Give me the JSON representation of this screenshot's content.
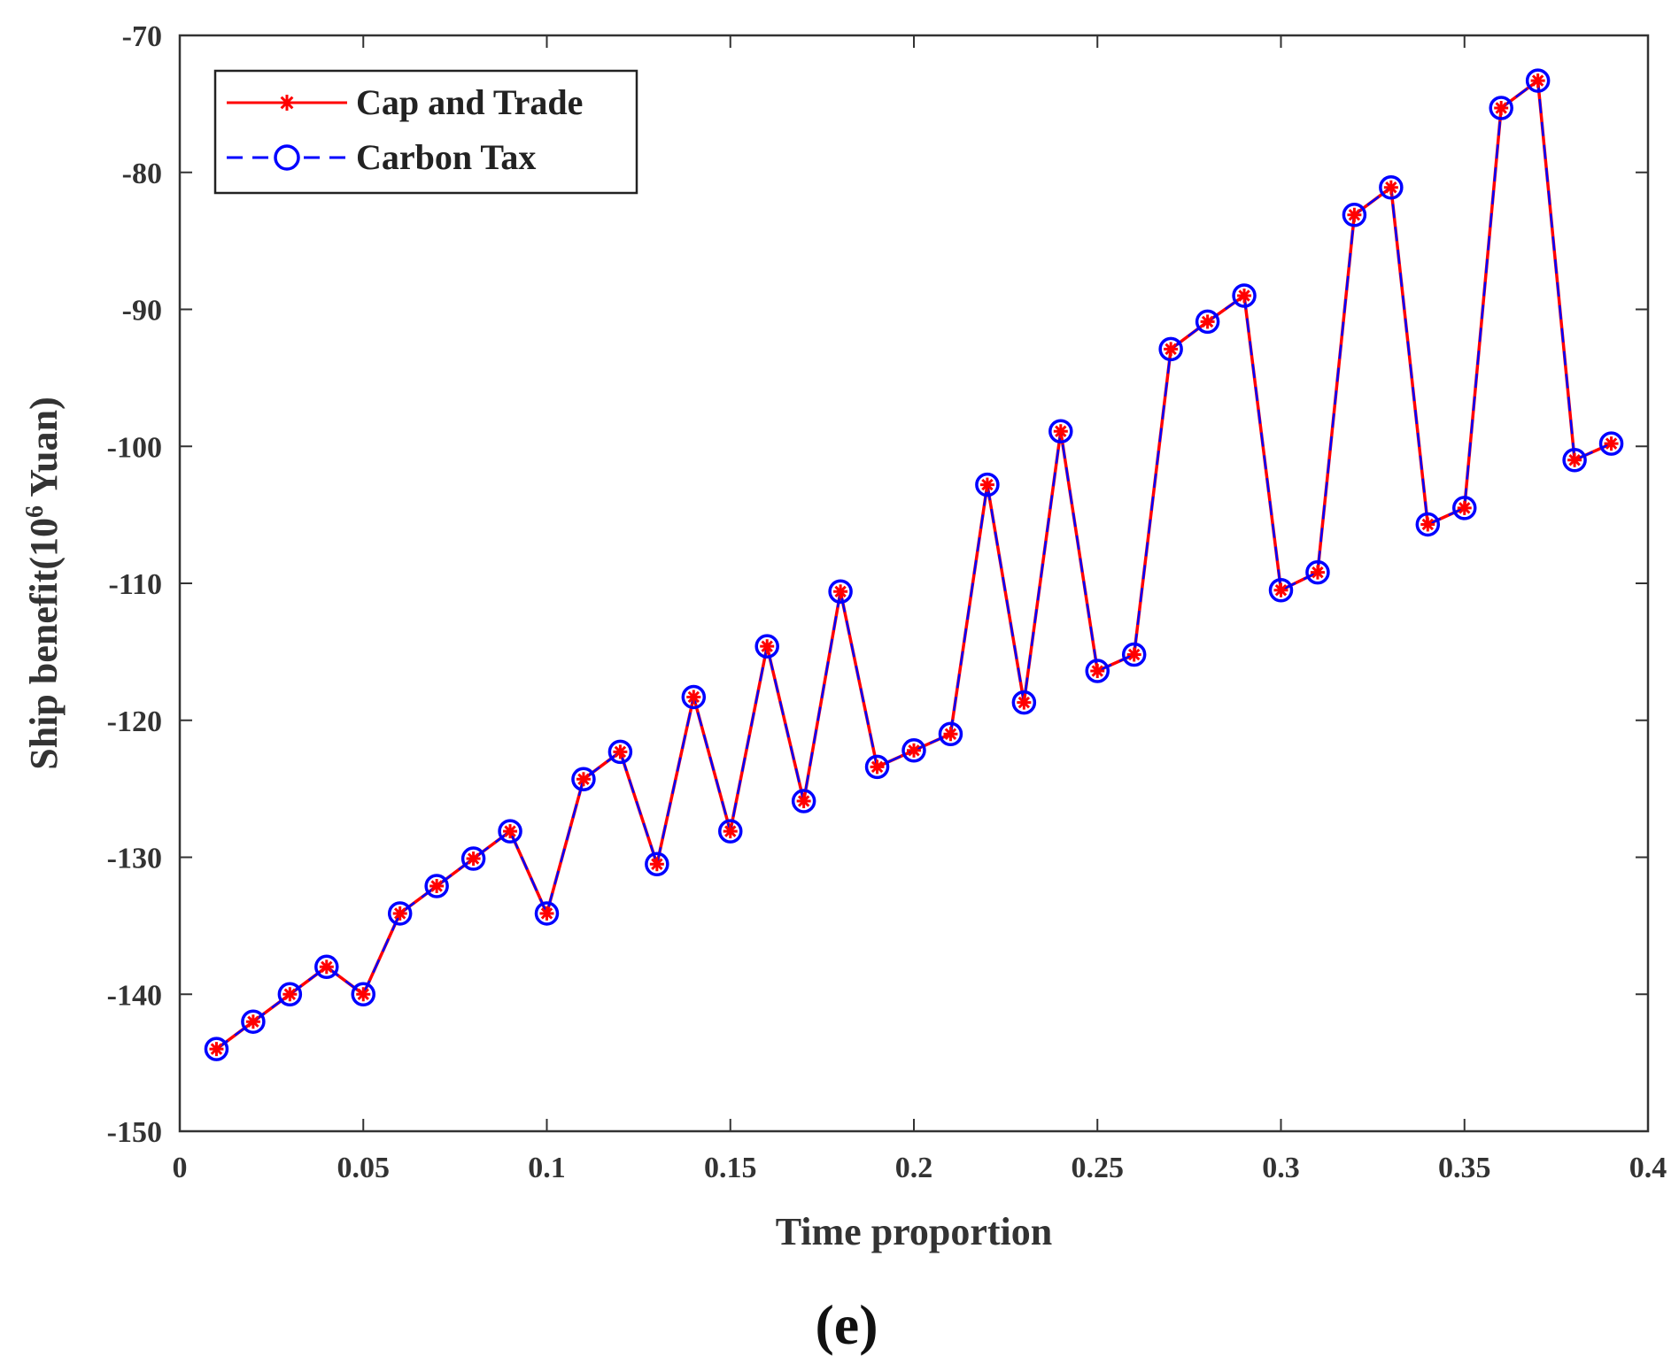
{
  "chart_data": {
    "type": "line",
    "title": "",
    "xlabel": "Time proportion",
    "ylabel_main": "Ship benefit(10",
    "ylabel_sup": "6",
    "ylabel_tail": " Yuan)",
    "caption": "(e)",
    "xlim": [
      0,
      0.4
    ],
    "ylim": [
      -150,
      -70
    ],
    "xticks": [
      0,
      0.05,
      0.1,
      0.15,
      0.2,
      0.25,
      0.3,
      0.35,
      0.4
    ],
    "xtick_labels": [
      "0",
      "0.05",
      "0.1",
      "0.15",
      "0.2",
      "0.25",
      "0.3",
      "0.35",
      "0.4"
    ],
    "yticks": [
      -70,
      -80,
      -90,
      -100,
      -110,
      -120,
      -130,
      -140,
      -150
    ],
    "ytick_labels": [
      "-70",
      "-80",
      "-90",
      "-100",
      "-110",
      "-120",
      "-130",
      "-140",
      "-150"
    ],
    "legend_position": "top-left",
    "x": [
      0.01,
      0.02,
      0.03,
      0.04,
      0.05,
      0.06,
      0.07,
      0.08,
      0.09,
      0.1,
      0.11,
      0.12,
      0.13,
      0.14,
      0.15,
      0.16,
      0.17,
      0.18,
      0.19,
      0.2,
      0.21,
      0.22,
      0.23,
      0.24,
      0.25,
      0.26,
      0.27,
      0.28,
      0.29,
      0.3,
      0.31,
      0.32,
      0.33,
      0.34,
      0.35,
      0.36,
      0.37,
      0.38,
      0.39
    ],
    "series": [
      {
        "name": "Cap and Trade",
        "color": "#ff0000",
        "line": "solid",
        "marker": "asterisk",
        "values": [
          -144.0,
          -142.0,
          -140.0,
          -138.0,
          -140.0,
          -134.1,
          -132.1,
          -130.1,
          -128.1,
          -134.1,
          -124.3,
          -122.3,
          -130.5,
          -118.3,
          -128.1,
          -114.6,
          -125.9,
          -110.6,
          -123.4,
          -122.2,
          -121.0,
          -102.8,
          -118.7,
          -98.9,
          -116.4,
          -115.2,
          -92.9,
          -90.9,
          -89.0,
          -110.5,
          -109.2,
          -83.1,
          -81.1,
          -105.7,
          -104.5,
          -75.3,
          -73.3,
          -101.0,
          -99.8
        ]
      },
      {
        "name": "Carbon Tax",
        "color": "#0000ff",
        "line": "dashed",
        "marker": "circle",
        "values": [
          -144.0,
          -142.0,
          -140.0,
          -138.0,
          -140.0,
          -134.1,
          -132.1,
          -130.1,
          -128.1,
          -134.1,
          -124.3,
          -122.3,
          -130.5,
          -118.3,
          -128.1,
          -114.6,
          -125.9,
          -110.6,
          -123.4,
          -122.2,
          -121.0,
          -102.8,
          -118.7,
          -98.9,
          -116.4,
          -115.2,
          -92.9,
          -90.9,
          -89.0,
          -110.5,
          -109.2,
          -83.1,
          -81.1,
          -105.7,
          -104.5,
          -75.3,
          -73.3,
          -101.0,
          -99.8
        ]
      }
    ]
  }
}
